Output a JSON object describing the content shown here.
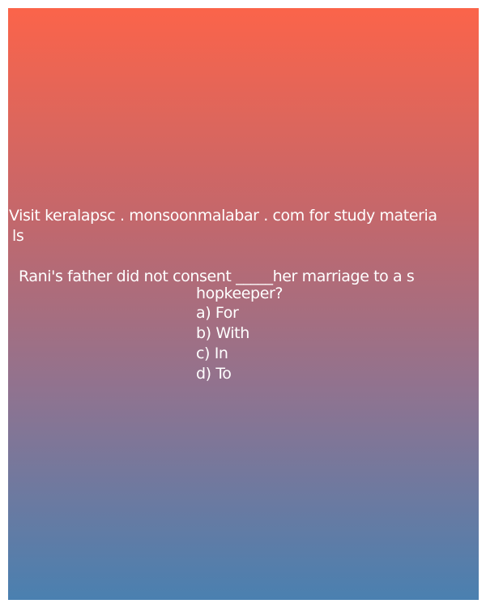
{
  "promo": {
    "line1": "Visit keralapsc . monsoonmalabar . com for study materia",
    "line2": "ls"
  },
  "question": {
    "line1": "Rani's father did not consent _____her marriage to a s",
    "line2": "hopkeeper?"
  },
  "options": [
    "a) For",
    "b) With",
    "c) In",
    "d) To"
  ],
  "colors": {
    "gradient_top": "#fb644a",
    "gradient_bottom": "#4a80b0",
    "text": "#ffffff"
  }
}
